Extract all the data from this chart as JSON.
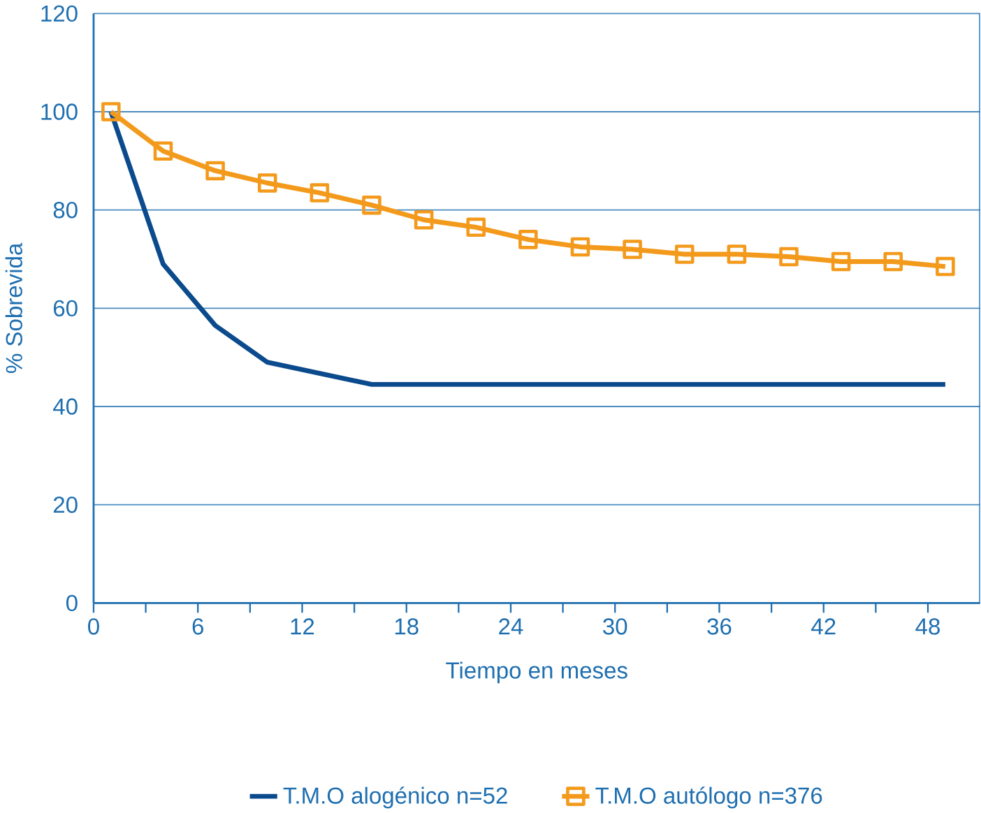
{
  "chart_data": {
    "type": "line",
    "xlabel": "Tiempo en meses",
    "ylabel": "% Sobrevida",
    "xlim": [
      0,
      51
    ],
    "xticks": [
      0,
      6,
      12,
      18,
      24,
      30,
      36,
      42,
      48
    ],
    "ylim": [
      0,
      120
    ],
    "yticks": [
      0,
      20,
      40,
      60,
      80,
      100,
      120
    ],
    "grid": "y",
    "legend": "bottom",
    "line_style": "solid",
    "series": [
      {
        "name": "T.M.O alogénico n=52",
        "color": "#0b4a8c",
        "marker": "none",
        "x": [
          1,
          4,
          7,
          10,
          16,
          49
        ],
        "values": [
          100,
          69,
          56.5,
          49,
          44.5,
          44.5
        ]
      },
      {
        "name": "T.M.O autólogo n=376",
        "color": "#f39a1c",
        "marker": "square",
        "x": [
          1,
          4,
          7,
          10,
          13,
          16,
          19,
          22,
          25,
          28,
          31,
          34,
          37,
          40,
          43,
          46,
          49
        ],
        "values": [
          100,
          92,
          88,
          85.5,
          83.5,
          81,
          78,
          76.5,
          74,
          72.5,
          72,
          71,
          71,
          70.5,
          69.5,
          69.5,
          68.5
        ]
      }
    ]
  }
}
